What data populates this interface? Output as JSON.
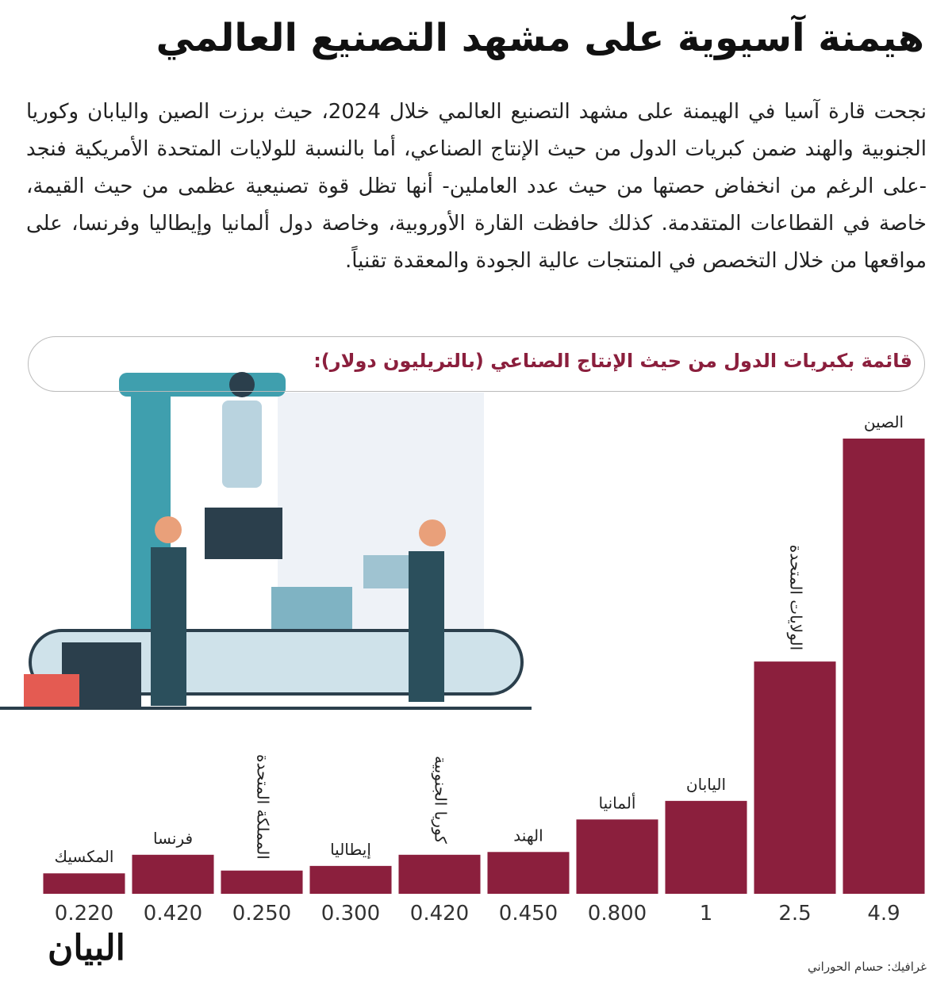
{
  "header": {
    "title": "هيمنة آسيوية على مشهد التصنيع العالمي",
    "body": "نجحت قارة آسيا في الهيمنة على مشهد التصنيع العالمي خلال 2024، حيث برزت الصين واليابان وكوريا الجنوبية والهند ضمن كبريات الدول من حيث الإنتاج الصناعي، أما بالنسبة للولايات المتحدة الأمريكية فنجد -على الرغم من انخفاض حصتها من حيث عدد العاملين- أنها تظل قوة تصنيعية عظمى من حيث القيمة، خاصة في القطاعات المتقدمة. كذلك حافظت القارة الأوروبية، وخاصة دول ألمانيا وإيطاليا وفرنسا، على مواقعها من خلال التخصص في المنتجات عالية الجودة والمعقدة تقنياً."
  },
  "chart_data": {
    "type": "bar",
    "title": "قائمة بكبريات الدول من حيث الإنتاج الصناعي (بالتريليون دولار):",
    "categories": [
      "الصين",
      "الولايات المتحدة",
      "اليابان",
      "ألمانيا",
      "الهند",
      "كوريا الجنوبية",
      "إيطاليا",
      "المملكة المتحدة",
      "فرنسا",
      "المكسيك"
    ],
    "values": [
      4.9,
      2.5,
      1,
      0.8,
      0.45,
      0.42,
      0.3,
      0.25,
      0.42,
      0.22
    ],
    "value_labels": [
      "4.9",
      "2.5",
      "1",
      "0.800",
      "0.450",
      "0.420",
      "0.300",
      "0.250",
      "0.420",
      "0.220"
    ],
    "color": "#8b1f3d"
  },
  "footer": {
    "logo": "البيان",
    "credit": "غرافيك: حسام الحوراني"
  }
}
